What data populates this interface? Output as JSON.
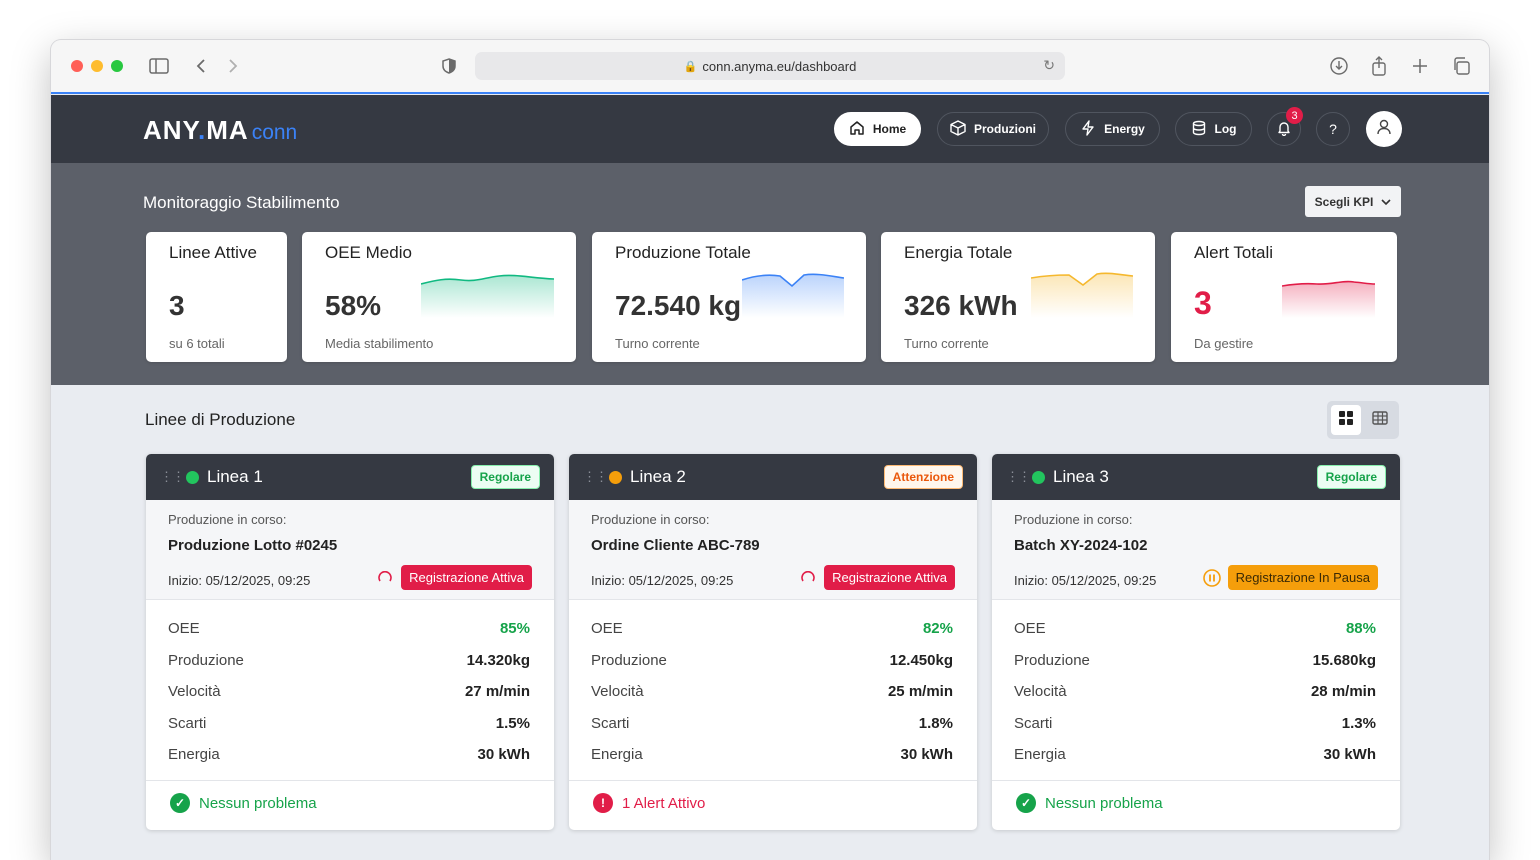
{
  "browser": {
    "url": "conn.anyma.eu/dashboard"
  },
  "app": {
    "logo_main": "ANY",
    "logo_dot": ".",
    "logo_second": "MA",
    "logo_suffix": "conn",
    "nav": [
      {
        "label": "Home",
        "icon": "home-icon",
        "active": true
      },
      {
        "label": "Produzioni",
        "icon": "box-icon",
        "active": false
      },
      {
        "label": "Energy",
        "icon": "lightning-icon",
        "active": false
      },
      {
        "label": "Log",
        "icon": "database-icon",
        "active": false
      }
    ],
    "notifications_count": "3",
    "help_label": "?"
  },
  "kpi_section": {
    "title": "Monitoraggio Stabilimento",
    "select_label": "Scegli KPI",
    "cards": [
      {
        "label": "Linee Attive",
        "value": "3",
        "sub": "su 6 totali"
      },
      {
        "label": "OEE Medio",
        "value": "58%",
        "sub": "Media stabilimento",
        "color": "#10b981"
      },
      {
        "label": "Produzione Totale",
        "value": "72.540 kg",
        "sub": "Turno corrente",
        "color": "#3b82f6"
      },
      {
        "label": "Energia Totale",
        "value": "326 kWh",
        "sub": "Turno corrente",
        "color": "#f5b82e"
      },
      {
        "label": "Alert Totali",
        "value": "3",
        "sub": "Da gestire",
        "color": "#e11d48"
      }
    ]
  },
  "lines_section": {
    "title": "Linee di Produzione",
    "lines": [
      {
        "name": "Linea 1",
        "status_color": "#22c55e",
        "tag": "Regolare",
        "prod_label": "Produzione in corso:",
        "prod_value": "Produzione Lotto #0245",
        "start": "Inizio: 05/12/2025, 09:25",
        "rec": "Registrazione Attiva",
        "metrics": [
          {
            "label": "OEE",
            "value": "85%"
          },
          {
            "label": "Produzione",
            "value": "14.320kg"
          },
          {
            "label": "Velocità",
            "value": "27 m/min"
          },
          {
            "label": "Scarti",
            "value": "1.5%"
          },
          {
            "label": "Energia",
            "value": "30 kWh"
          }
        ],
        "footer": "Nessun problema"
      },
      {
        "name": "Linea 2",
        "status_color": "#f59e0b",
        "tag": "Attenzione",
        "prod_label": "Produzione in corso:",
        "prod_value": "Ordine Cliente ABC-789",
        "start": "Inizio: 05/12/2025, 09:25",
        "rec": "Registrazione Attiva",
        "metrics": [
          {
            "label": "OEE",
            "value": "82%"
          },
          {
            "label": "Produzione",
            "value": "12.450kg"
          },
          {
            "label": "Velocità",
            "value": "25 m/min"
          },
          {
            "label": "Scarti",
            "value": "1.8%"
          },
          {
            "label": "Energia",
            "value": "30 kWh"
          }
        ],
        "footer": "1 Alert Attivo"
      },
      {
        "name": "Linea 3",
        "status_color": "#22c55e",
        "tag": "Regolare",
        "prod_label": "Produzione in corso:",
        "prod_value": "Batch XY-2024-102",
        "start": "Inizio: 05/12/2025, 09:25",
        "rec": "Registrazione In Pausa",
        "metrics": [
          {
            "label": "OEE",
            "value": "88%"
          },
          {
            "label": "Produzione",
            "value": "15.680kg"
          },
          {
            "label": "Velocità",
            "value": "28 m/min"
          },
          {
            "label": "Scarti",
            "value": "1.3%"
          },
          {
            "label": "Energia",
            "value": "30 kWh"
          }
        ],
        "footer": "Nessun problema"
      }
    ]
  }
}
